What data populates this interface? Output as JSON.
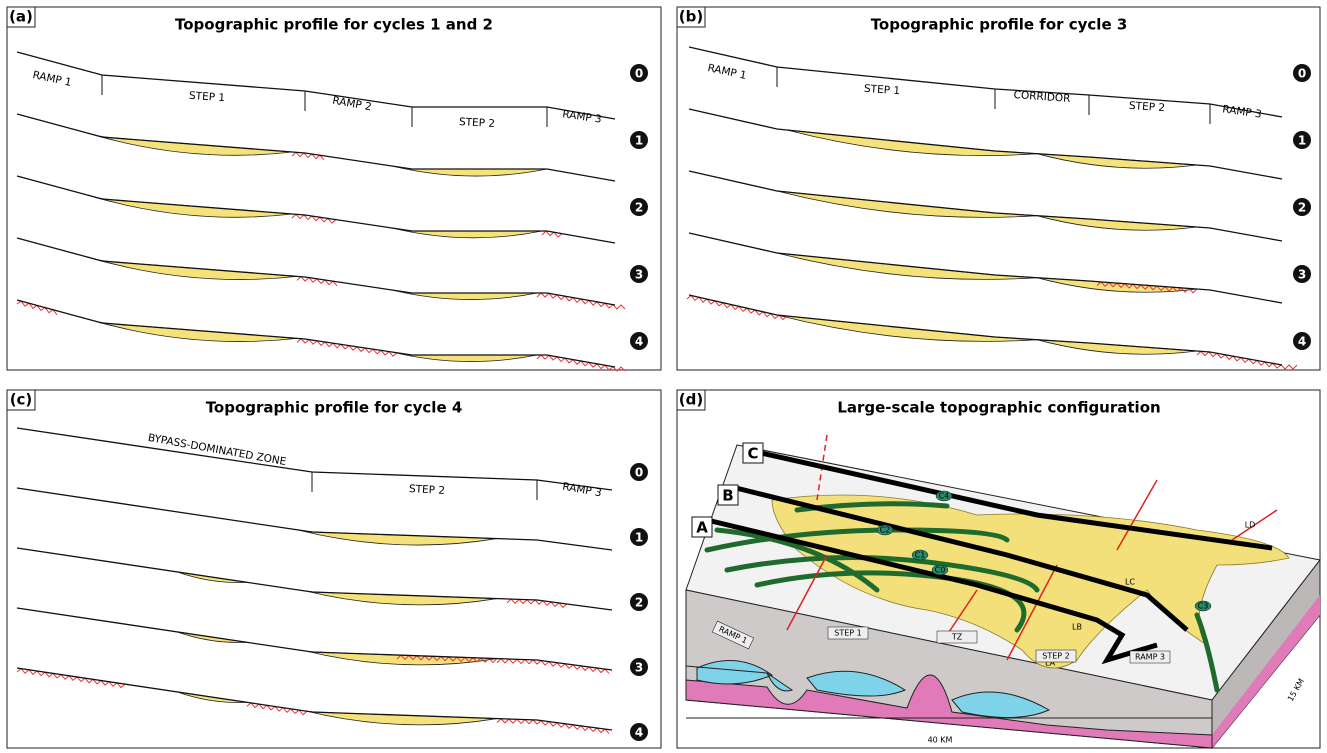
{
  "panels": [
    {
      "label": "(a)",
      "title": "Topographic profile for cycles 1 and 2",
      "zones": [
        "RAMP 1",
        "STEP 1",
        "RAMP 2",
        "STEP 2",
        "RAMP 3"
      ],
      "cycles": [
        "0",
        "1",
        "2",
        "3",
        "4"
      ]
    },
    {
      "label": "(b)",
      "title": "Topographic profile for cycle 3",
      "zones": [
        "RAMP 1",
        "STEP 1",
        "CORRIDOR",
        "STEP 2",
        "RAMP 3"
      ],
      "cycles": [
        "0",
        "1",
        "2",
        "3",
        "4"
      ]
    },
    {
      "label": "(c)",
      "title": "Topographic profile for cycle 4",
      "zones": [
        "BYPASS-DOMINATED ZONE",
        "STEP 2",
        "RAMP 3"
      ],
      "cycles": [
        "0",
        "1",
        "2",
        "3",
        "4"
      ]
    },
    {
      "label": "(d)",
      "title": "Large-scale topographic configuration",
      "sections": [
        "A",
        "B",
        "C"
      ],
      "labels": [
        "C4",
        "C2",
        "C1",
        "C0",
        "C3",
        "LD",
        "LC",
        "LB",
        "LA",
        "RAMP 1",
        "STEP 1",
        "TZ",
        "STEP 2",
        "RAMP 3",
        "40 KM",
        "15 KM"
      ]
    }
  ]
}
